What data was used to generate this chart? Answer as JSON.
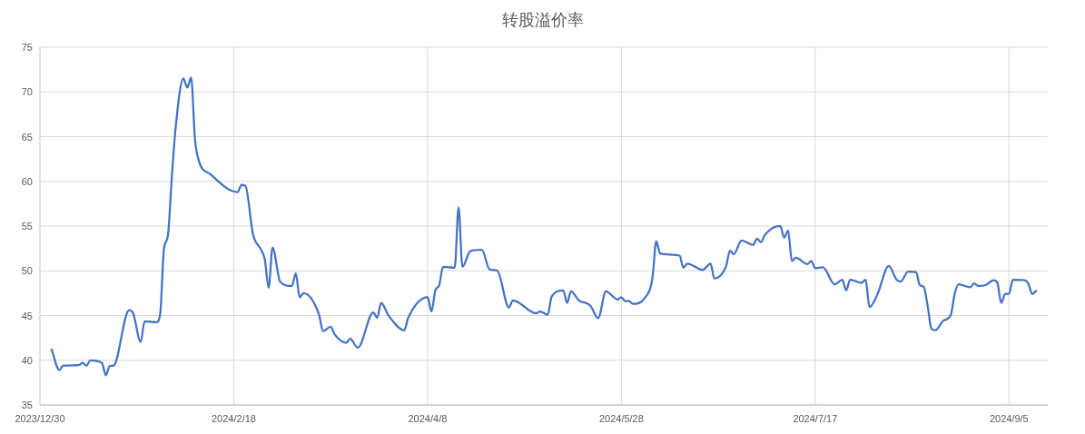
{
  "chart_data": {
    "type": "line",
    "title": "转股溢价率",
    "grid": true,
    "xlim": [
      "2023-12-30",
      "2024-09-15"
    ],
    "xticks": [
      {
        "value": "2023-12-30",
        "label": "2023/12/30"
      },
      {
        "value": "2024-02-18",
        "label": "2024/2/18"
      },
      {
        "value": "2024-04-08",
        "label": "2024/4/8"
      },
      {
        "value": "2024-05-28",
        "label": "2024/5/28"
      },
      {
        "value": "2024-07-17",
        "label": "2024/7/17"
      },
      {
        "value": "2024-09-05",
        "label": "2024/9/5"
      }
    ],
    "ylim": [
      35,
      75
    ],
    "yticks": [
      35,
      40,
      45,
      50,
      55,
      60,
      65,
      70,
      75
    ],
    "series": [
      {
        "color": "#4472c4",
        "x": [
          "2024-01-02",
          "2024-01-04",
          "2024-01-05",
          "2024-01-09",
          "2024-01-10",
          "2024-01-11",
          "2024-01-12",
          "2024-01-15",
          "2024-01-16",
          "2024-01-17",
          "2024-01-18",
          "2024-01-22",
          "2024-01-23",
          "2024-01-25",
          "2024-01-26",
          "2024-01-29",
          "2024-01-30",
          "2024-01-31",
          "2024-02-01",
          "2024-02-02",
          "2024-02-03",
          "2024-02-05",
          "2024-02-06",
          "2024-02-07",
          "2024-02-08",
          "2024-02-09",
          "2024-02-12",
          "2024-02-19",
          "2024-02-20",
          "2024-02-21",
          "2024-02-23",
          "2024-02-25",
          "2024-02-26",
          "2024-02-27",
          "2024-02-28",
          "2024-03-01",
          "2024-03-04",
          "2024-03-05",
          "2024-03-06",
          "2024-03-07",
          "2024-03-11",
          "2024-03-12",
          "2024-03-14",
          "2024-03-15",
          "2024-03-18",
          "2024-03-19",
          "2024-03-21",
          "2024-03-25",
          "2024-03-26",
          "2024-03-27",
          "2024-03-29",
          "2024-04-02",
          "2024-04-03",
          "2024-04-08",
          "2024-04-09",
          "2024-04-10",
          "2024-04-11",
          "2024-04-12",
          "2024-04-15",
          "2024-04-16",
          "2024-04-17",
          "2024-04-19",
          "2024-04-22",
          "2024-04-24",
          "2024-04-26",
          "2024-04-29",
          "2024-04-30",
          "2024-05-06",
          "2024-05-07",
          "2024-05-09",
          "2024-05-10",
          "2024-05-13",
          "2024-05-14",
          "2024-05-15",
          "2024-05-17",
          "2024-05-20",
          "2024-05-22",
          "2024-05-24",
          "2024-05-27",
          "2024-05-28",
          "2024-05-29",
          "2024-05-30",
          "2024-05-31",
          "2024-06-03",
          "2024-06-05",
          "2024-06-06",
          "2024-06-07",
          "2024-06-12",
          "2024-06-13",
          "2024-06-14",
          "2024-06-18",
          "2024-06-20",
          "2024-06-21",
          "2024-06-24",
          "2024-06-25",
          "2024-06-26",
          "2024-06-28",
          "2024-07-01",
          "2024-07-02",
          "2024-07-03",
          "2024-07-04",
          "2024-07-08",
          "2024-07-09",
          "2024-07-10",
          "2024-07-11",
          "2024-07-12",
          "2024-07-15",
          "2024-07-16",
          "2024-07-17",
          "2024-07-19",
          "2024-07-22",
          "2024-07-24",
          "2024-07-25",
          "2024-07-26",
          "2024-07-29",
          "2024-07-30",
          "2024-07-31",
          "2024-08-02",
          "2024-08-05",
          "2024-08-07",
          "2024-08-08",
          "2024-08-10",
          "2024-08-12",
          "2024-08-13",
          "2024-08-14",
          "2024-08-15",
          "2024-08-16",
          "2024-08-17",
          "2024-08-19",
          "2024-08-21",
          "2024-08-22",
          "2024-08-23",
          "2024-08-26",
          "2024-08-27",
          "2024-08-28",
          "2024-08-30",
          "2024-09-01",
          "2024-09-02",
          "2024-09-03",
          "2024-09-04",
          "2024-09-05",
          "2024-09-06",
          "2024-09-09",
          "2024-09-10",
          "2024-09-11",
          "2024-09-12"
        ],
        "values": [
          41.2,
          38.9,
          39.4,
          39.45,
          39.7,
          39.4,
          40.0,
          39.7,
          38.3,
          39.35,
          39.4,
          45.6,
          45.3,
          42.05,
          44.35,
          44.25,
          45.1,
          52.5,
          53.9,
          60.3,
          66.0,
          71.5,
          70.5,
          71.6,
          64.7,
          62.3,
          60.8,
          58.8,
          59.6,
          59.5,
          54.0,
          52.4,
          51.3,
          48.1,
          52.6,
          48.75,
          48.3,
          49.7,
          47.05,
          47.5,
          45.1,
          43.25,
          43.75,
          42.9,
          41.95,
          42.4,
          41.4,
          45.35,
          44.75,
          46.4,
          44.95,
          43.35,
          44.75,
          47.05,
          45.45,
          47.8,
          48.4,
          50.45,
          50.35,
          57.1,
          50.45,
          52.2,
          52.35,
          50.15,
          50.0,
          45.9,
          46.7,
          45.25,
          45.45,
          45.1,
          47.1,
          47.8,
          46.4,
          47.7,
          46.7,
          46.1,
          44.7,
          47.7,
          46.8,
          47.05,
          46.6,
          46.6,
          46.3,
          46.95,
          49.15,
          53.3,
          51.95,
          51.7,
          50.35,
          50.8,
          50.1,
          50.8,
          49.15,
          50.5,
          52.25,
          51.85,
          53.4,
          52.9,
          53.6,
          53.2,
          54.0,
          55.0,
          53.7,
          54.5,
          51.1,
          51.45,
          50.75,
          51.1,
          50.3,
          50.4,
          48.5,
          49.0,
          47.8,
          49.0,
          48.65,
          49.0,
          45.95,
          47.3,
          50.55,
          49.0,
          48.8,
          49.9,
          49.85,
          48.4,
          48.2,
          46.1,
          43.5,
          43.35,
          44.4,
          45.1,
          47.45,
          48.5,
          48.15,
          48.6,
          48.3,
          48.4,
          48.95,
          48.65,
          46.4,
          47.4,
          47.45,
          49.0,
          48.95,
          48.55,
          47.4,
          47.75
        ]
      }
    ]
  }
}
